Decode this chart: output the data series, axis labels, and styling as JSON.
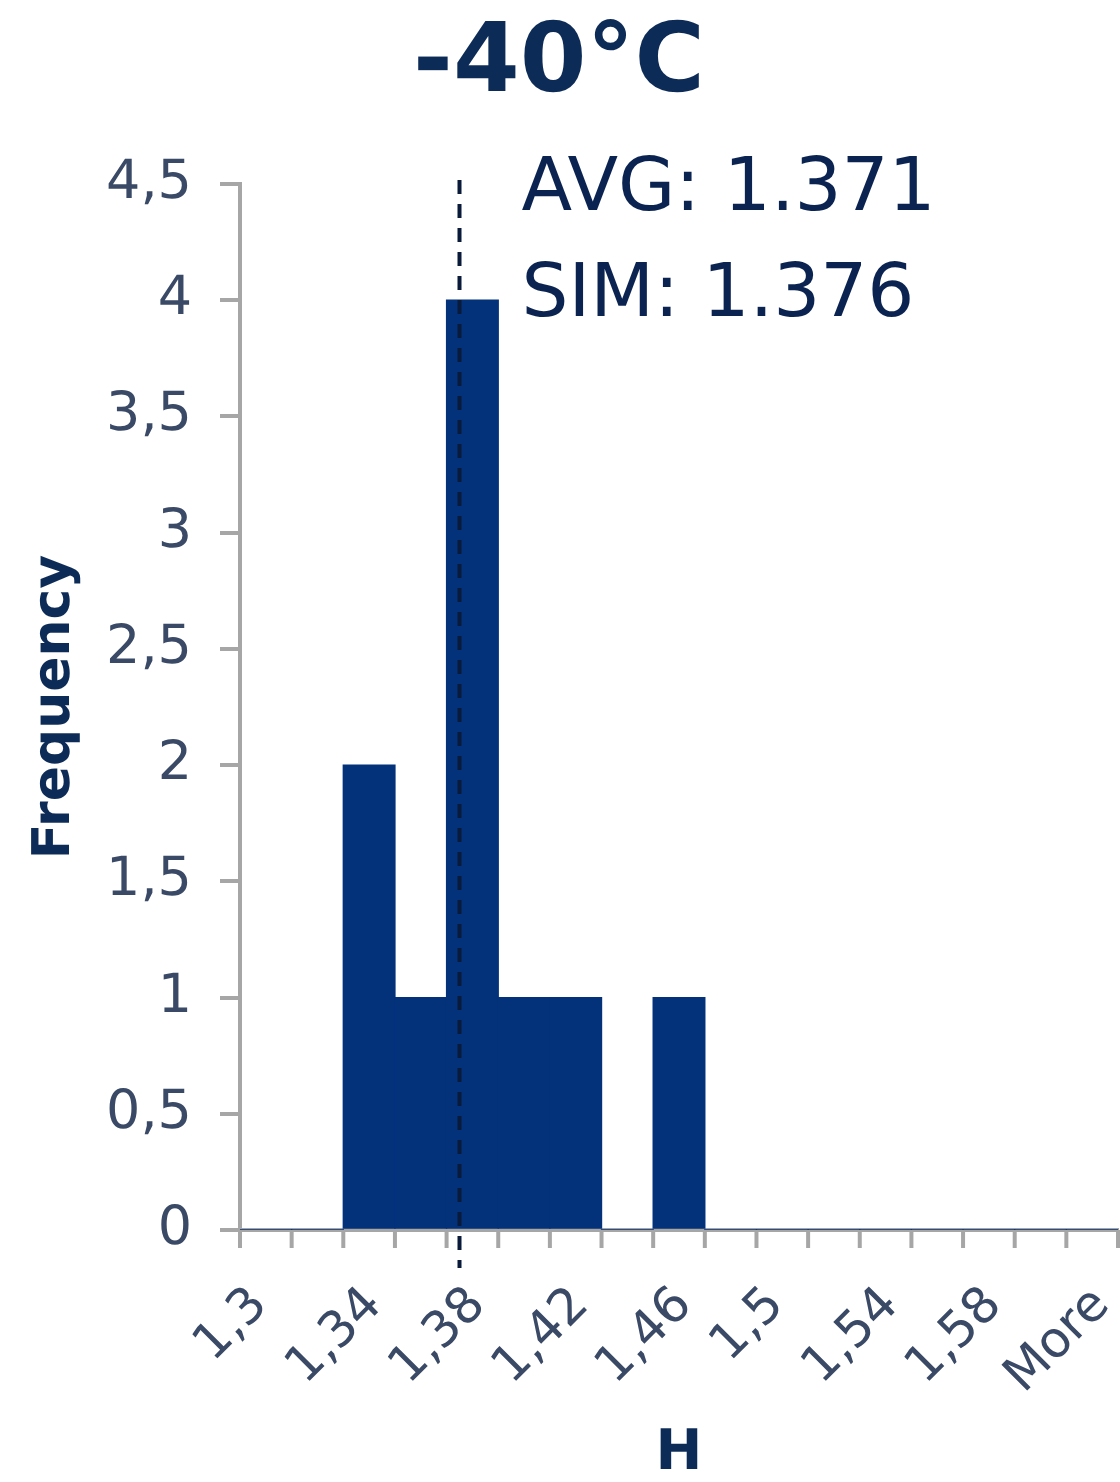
{
  "chart_data": {
    "type": "histogram",
    "title": "-40°C",
    "xlabel": "H",
    "ylabel": "Frequency",
    "bins": [
      1.3,
      1.32,
      1.34,
      1.36,
      1.38,
      1.4,
      1.42,
      1.44,
      1.46,
      1.48,
      1.5,
      1.52,
      1.54,
      1.56,
      1.58,
      1.6,
      1.62,
      1.64
    ],
    "values": [
      0,
      0,
      2,
      1,
      4,
      1,
      1,
      0,
      1,
      0,
      0,
      0,
      0,
      0,
      0,
      0,
      0
    ],
    "color": "#03317a",
    "xlim": [
      1.3,
      1.64
    ],
    "xticks": [
      {
        "value": 1.3,
        "label": "1,3"
      },
      {
        "value": 1.32,
        "label": null
      },
      {
        "value": 1.34,
        "label": "1,34"
      },
      {
        "value": 1.36,
        "label": null
      },
      {
        "value": 1.38,
        "label": "1,38"
      },
      {
        "value": 1.4,
        "label": null
      },
      {
        "value": 1.42,
        "label": "1,42"
      },
      {
        "value": 1.44,
        "label": null
      },
      {
        "value": 1.46,
        "label": "1,46"
      },
      {
        "value": 1.48,
        "label": null
      },
      {
        "value": 1.5,
        "label": "1,5"
      },
      {
        "value": 1.52,
        "label": null
      },
      {
        "value": 1.54,
        "label": "1,54"
      },
      {
        "value": 1.56,
        "label": null
      },
      {
        "value": 1.58,
        "label": "1,58"
      },
      {
        "value": 1.6,
        "label": null
      },
      {
        "value": 1.62,
        "label": "More"
      },
      {
        "value": 1.64,
        "label": null
      }
    ],
    "ylim": [
      0,
      4.5
    ],
    "yticks": [
      0,
      {
        "value": 0.5,
        "label": "0,5"
      },
      1,
      {
        "value": 1.5,
        "label": "1,5"
      },
      2,
      {
        "value": 2.5,
        "label": "2,5"
      },
      3,
      {
        "value": 3.5,
        "label": "3,5"
      },
      4,
      {
        "value": 4.5,
        "label": "4,5"
      }
    ],
    "ref_lines": [
      {
        "axis": "x",
        "value": 1.385,
        "line_style": "dashed",
        "color": "#0a1a3a"
      }
    ],
    "annotations": [
      "AVG: 1.371",
      "SIM: 1.376"
    ]
  }
}
